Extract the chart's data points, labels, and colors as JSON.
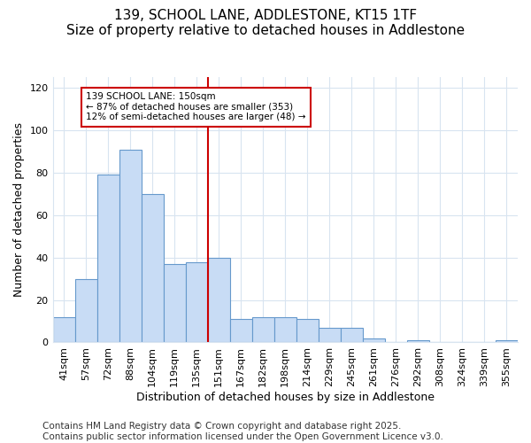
{
  "title": "139, SCHOOL LANE, ADDLESTONE, KT15 1TF",
  "subtitle": "Size of property relative to detached houses in Addlestone",
  "xlabel": "Distribution of detached houses by size in Addlestone",
  "ylabel": "Number of detached properties",
  "categories": [
    "41sqm",
    "57sqm",
    "72sqm",
    "88sqm",
    "104sqm",
    "119sqm",
    "135sqm",
    "151sqm",
    "167sqm",
    "182sqm",
    "198sqm",
    "214sqm",
    "229sqm",
    "245sqm",
    "261sqm",
    "276sqm",
    "292sqm",
    "308sqm",
    "324sqm",
    "339sqm",
    "355sqm"
  ],
  "values": [
    12,
    30,
    79,
    91,
    70,
    37,
    38,
    40,
    11,
    12,
    12,
    11,
    7,
    7,
    2,
    0,
    1,
    0,
    0,
    0,
    1
  ],
  "bar_color": "#c8dcf5",
  "bar_edge_color": "#6699cc",
  "vline_x_index": 7,
  "vline_color": "#cc0000",
  "annotation_text": "139 SCHOOL LANE: 150sqm\n← 87% of detached houses are smaller (353)\n12% of semi-detached houses are larger (48) →",
  "annotation_box_color": "#ffffff",
  "annotation_box_edge": "#cc0000",
  "ylim": [
    0,
    125
  ],
  "yticks": [
    0,
    20,
    40,
    60,
    80,
    100,
    120
  ],
  "footnote": "Contains HM Land Registry data © Crown copyright and database right 2025.\nContains public sector information licensed under the Open Government Licence v3.0.",
  "bg_color": "#ffffff",
  "plot_bg_color": "#ffffff",
  "grid_color": "#d8e4f0",
  "title_fontsize": 11,
  "subtitle_fontsize": 10,
  "label_fontsize": 9,
  "tick_fontsize": 8,
  "footnote_fontsize": 7.5
}
